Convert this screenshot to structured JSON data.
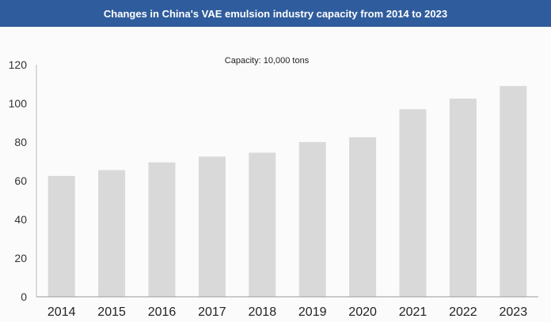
{
  "chart_data": {
    "type": "bar",
    "title": "Changes in China's VAE emulsion industry capacity from 2014 to 2023",
    "annotation": "Capacity: 10,000 tons",
    "categories": [
      "2014",
      "2015",
      "2016",
      "2017",
      "2018",
      "2019",
      "2020",
      "2021",
      "2022",
      "2023"
    ],
    "values": [
      62.5,
      65.5,
      69.5,
      72.5,
      74.5,
      80,
      82.5,
      97,
      102.5,
      109
    ],
    "xlabel": "",
    "ylabel": "",
    "ylim": [
      0,
      120
    ],
    "yticks": [
      0,
      20,
      40,
      60,
      80,
      100,
      120
    ],
    "grid": false,
    "bar_color": "#d9d9d9",
    "title_bar_color": "#2f5c9c"
  }
}
